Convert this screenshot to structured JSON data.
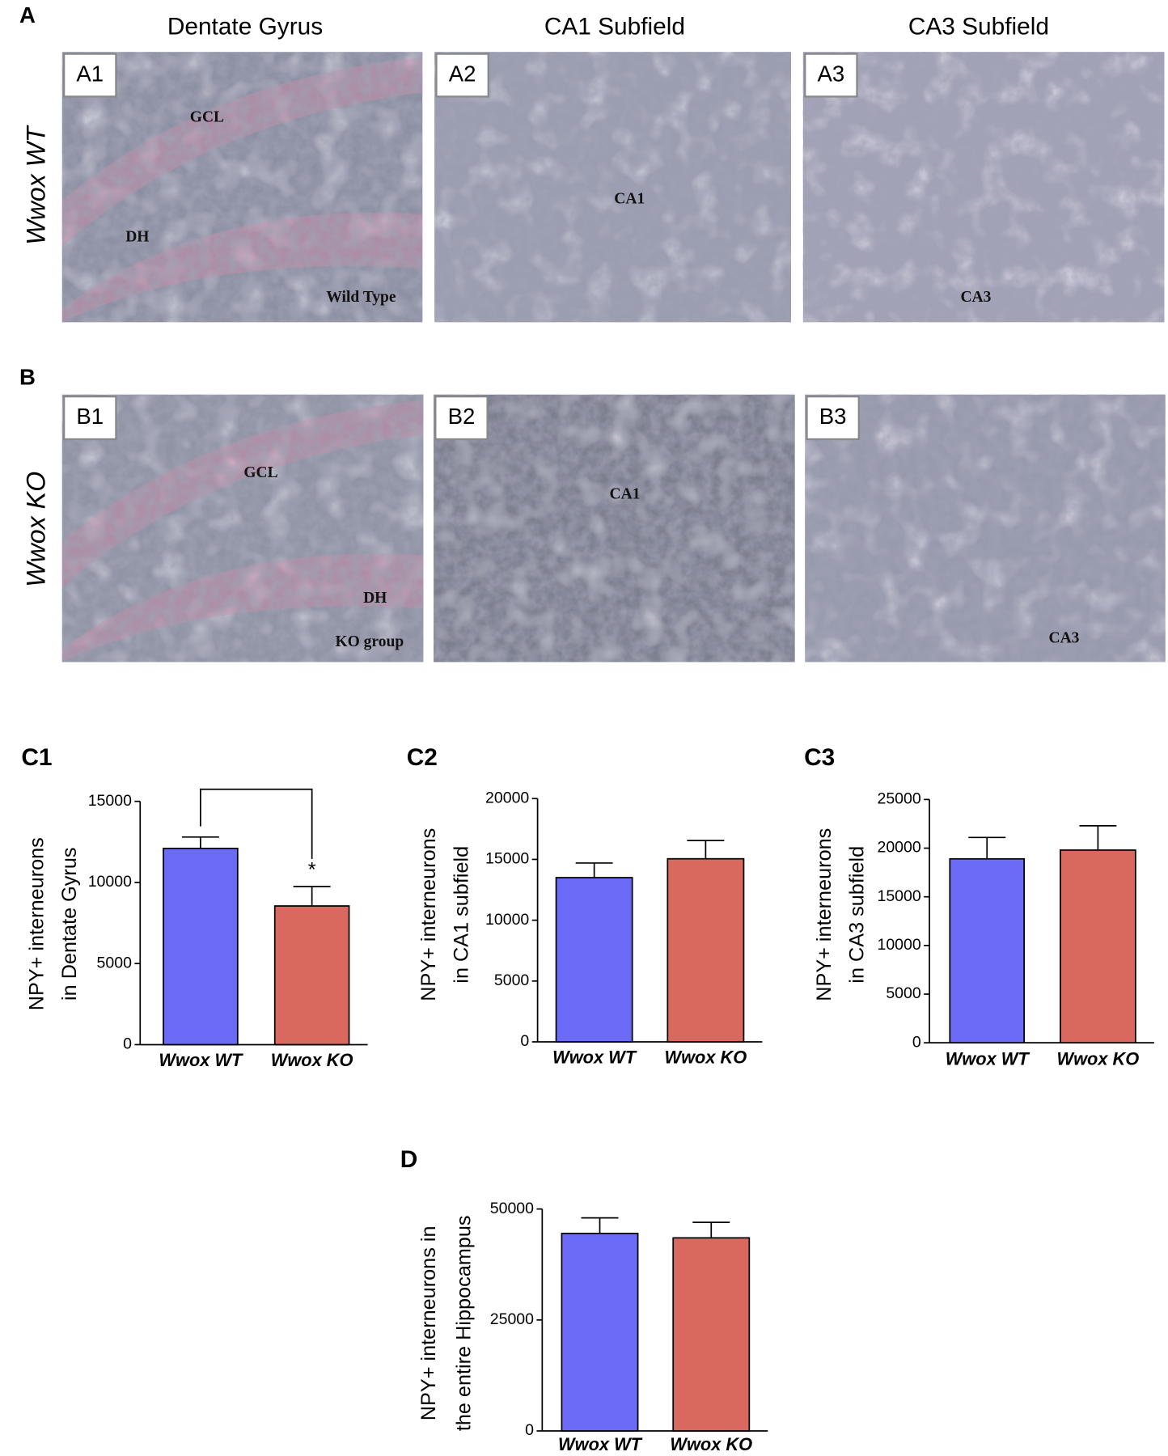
{
  "section_labels": [
    "A",
    "B"
  ],
  "column_headers": [
    "Dentate Gyrus",
    "CA1 Subfield",
    "CA3 Subfield"
  ],
  "row_labels": [
    "Wwox WT",
    "Wwox KO"
  ],
  "micrographs": [
    {
      "label": "A1",
      "annotations": [
        "GCL",
        "DH",
        "Wild Type"
      ]
    },
    {
      "label": "A2",
      "annotations": [
        "CA1"
      ]
    },
    {
      "label": "A3",
      "annotations": [
        "CA3"
      ]
    },
    {
      "label": "B1",
      "annotations": [
        "GCL",
        "DH",
        "KO group"
      ]
    },
    {
      "label": "B2",
      "annotations": [
        "CA1"
      ]
    },
    {
      "label": "B3",
      "annotations": [
        "CA3"
      ]
    }
  ],
  "chart_data": [
    {
      "type": "bar",
      "panel": "C1",
      "y_label": [
        "NPY+ interneurons",
        "in Dentate Gyrus"
      ],
      "categories": [
        "Wwox WT",
        "Wwox KO"
      ],
      "values": [
        12100,
        8550
      ],
      "errors": [
        700,
        1200
      ],
      "colors": [
        "#6b6bf7",
        "#d9685f"
      ],
      "ylim": [
        0,
        15000
      ],
      "yticks": [
        0,
        5000,
        10000,
        15000
      ],
      "annotation": "*"
    },
    {
      "type": "bar",
      "panel": "C2",
      "y_label": [
        "NPY+ interneurons",
        "in CA1 subfield"
      ],
      "categories": [
        "Wwox WT",
        "Wwox KO"
      ],
      "values": [
        13500,
        15050
      ],
      "errors": [
        1200,
        1500
      ],
      "colors": [
        "#6b6bf7",
        "#d9685f"
      ],
      "ylim": [
        0,
        20000
      ],
      "yticks": [
        0,
        5000,
        10000,
        15000,
        20000
      ]
    },
    {
      "type": "bar",
      "panel": "C3",
      "y_label": [
        "NPY+ interneurons",
        "in CA3 subfield"
      ],
      "categories": [
        "Wwox WT",
        "Wwox KO"
      ],
      "values": [
        18900,
        19800
      ],
      "errors": [
        2200,
        2500
      ],
      "colors": [
        "#6b6bf7",
        "#d9685f"
      ],
      "ylim": [
        0,
        25000
      ],
      "yticks": [
        0,
        5000,
        10000,
        15000,
        20000,
        25000
      ]
    },
    {
      "type": "bar",
      "panel": "D",
      "y_label": [
        "NPY+ interneurons in",
        "the entire Hippocampus"
      ],
      "categories": [
        "Wwox WT",
        "Wwox KO"
      ],
      "values": [
        44500,
        43500
      ],
      "errors": [
        3500,
        3500
      ],
      "colors": [
        "#6b6bf7",
        "#d9685f"
      ],
      "ylim": [
        0,
        50000
      ],
      "yticks": [
        0,
        25000,
        50000
      ]
    }
  ]
}
